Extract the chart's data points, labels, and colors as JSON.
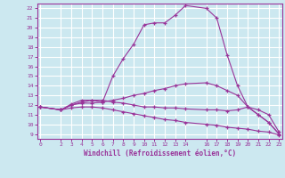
{
  "xlabel": "Windchill (Refroidissement éolien,°C)",
  "background_color": "#cce8f0",
  "grid_color": "#ffffff",
  "line_color": "#993399",
  "ylim": [
    8.5,
    22.5
  ],
  "xlim": [
    -0.3,
    23.3
  ],
  "yticks": [
    9,
    10,
    11,
    12,
    13,
    14,
    15,
    16,
    17,
    18,
    19,
    20,
    21,
    22
  ],
  "xticks": [
    0,
    2,
    3,
    4,
    5,
    6,
    7,
    8,
    9,
    10,
    11,
    12,
    13,
    14,
    16,
    17,
    18,
    19,
    20,
    21,
    22,
    23
  ],
  "line1_x": [
    0,
    2,
    3,
    4,
    5,
    6,
    7,
    8,
    9,
    10,
    11,
    12,
    13,
    14,
    16,
    17,
    18,
    19,
    20,
    21,
    22,
    23
  ],
  "line1_y": [
    11.8,
    11.5,
    12.1,
    12.5,
    12.5,
    12.3,
    15.0,
    16.8,
    18.3,
    20.3,
    20.5,
    20.5,
    21.3,
    22.3,
    22.0,
    21.0,
    17.2,
    14.0,
    11.8,
    11.0,
    10.2,
    9.0
  ],
  "line2_x": [
    0,
    2,
    3,
    4,
    5,
    6,
    7,
    8,
    9,
    10,
    11,
    12,
    13,
    14,
    16,
    17,
    18,
    19,
    20,
    21,
    22,
    23
  ],
  "line2_y": [
    11.8,
    11.5,
    12.0,
    12.2,
    12.2,
    12.3,
    12.5,
    12.7,
    13.0,
    13.2,
    13.5,
    13.7,
    14.0,
    14.2,
    14.3,
    14.0,
    13.5,
    13.0,
    11.8,
    11.0,
    10.2,
    9.0
  ],
  "line3_x": [
    0,
    2,
    3,
    4,
    5,
    6,
    7,
    8,
    9,
    10,
    11,
    12,
    13,
    14,
    16,
    17,
    18,
    19,
    20,
    21,
    22,
    23
  ],
  "line3_y": [
    11.8,
    11.5,
    11.7,
    11.8,
    11.8,
    11.7,
    11.5,
    11.3,
    11.1,
    10.9,
    10.7,
    10.5,
    10.4,
    10.2,
    10.0,
    9.9,
    9.7,
    9.6,
    9.5,
    9.3,
    9.2,
    8.9
  ],
  "line4_x": [
    0,
    2,
    3,
    4,
    5,
    6,
    7,
    8,
    9,
    10,
    11,
    12,
    13,
    14,
    16,
    17,
    18,
    19,
    20,
    21,
    22,
    23
  ],
  "line4_y": [
    11.8,
    11.5,
    12.0,
    12.3,
    12.5,
    12.5,
    12.3,
    12.2,
    12.0,
    11.8,
    11.8,
    11.7,
    11.7,
    11.6,
    11.5,
    11.5,
    11.4,
    11.5,
    11.8,
    11.5,
    11.0,
    9.2
  ]
}
